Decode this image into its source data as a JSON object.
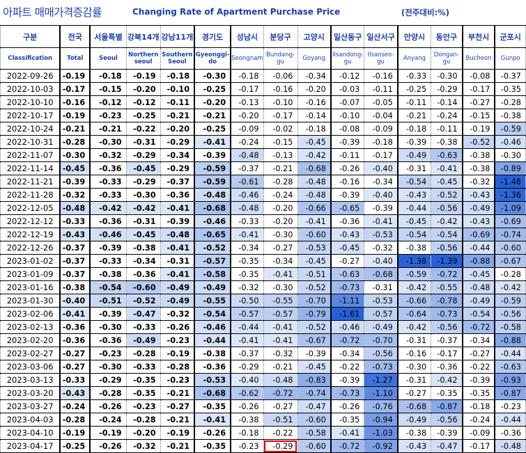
{
  "title": {
    "ko": "아파트 매매가격증감률",
    "en": "Changing Rate of Apartment Purchase Price",
    "unit": "(전주대비:%)"
  },
  "columns": [
    {
      "ko": "구분",
      "en": "Classification"
    },
    {
      "ko": "전국",
      "en": "Total"
    },
    {
      "ko": "서울특별",
      "en": "Seoul"
    },
    {
      "ko": "강북14개",
      "en": "Northern seoul"
    },
    {
      "ko": "강남11개",
      "en": "Southern Seoul"
    },
    {
      "ko": "경기도",
      "en": "Gyeonggi-do"
    },
    {
      "ko": "성남시",
      "en": "Seongnam"
    },
    {
      "ko": "분당구",
      "en": "Bundang-gu"
    },
    {
      "ko": "고양시",
      "en": "Goyang"
    },
    {
      "ko": "일산동구",
      "en": "Ilsandong-gu"
    },
    {
      "ko": "일산서구",
      "en": "Ilsanseo-gu"
    },
    {
      "ko": "안양시",
      "en": "Anyang"
    },
    {
      "ko": "동안구",
      "en": "Dongan-gu"
    },
    {
      "ko": "부천시",
      "en": "Bucheon"
    },
    {
      "ko": "군포시",
      "en": "Gunpo"
    }
  ],
  "rows": [
    {
      "date": "2022-09-26",
      "values": [
        "-0.19",
        "-0.18",
        "-0.19",
        "-0.18",
        "-0.30",
        "-0.18",
        "-0.06",
        "-0.34",
        "-0.12",
        "-0.16",
        "-0.33",
        "-0.30",
        "-0.08",
        "-0.37"
      ]
    },
    {
      "date": "2022-10-03",
      "values": [
        "-0.17",
        "-0.15",
        "-0.20",
        "-0.10",
        "-0.25",
        "-0.17",
        "-0.16",
        "-0.20",
        "-0.03",
        "-0.11",
        "-0.25",
        "-0.29",
        "-0.17",
        "-0.35"
      ]
    },
    {
      "date": "2022-10-10",
      "values": [
        "-0.16",
        "-0.12",
        "-0.12",
        "-0.11",
        "-0.20",
        "-0.13",
        "-0.10",
        "-0.16",
        "-0.07",
        "-0.05",
        "-0.11",
        "-0.14",
        "-0.27",
        "-0.28"
      ]
    },
    {
      "date": "2022-10-17",
      "values": [
        "-0.19",
        "-0.23",
        "-0.25",
        "-0.21",
        "-0.21",
        "-0.20",
        "-0.17",
        "-0.14",
        "-0.10",
        "-0.04",
        "-0.21",
        "-0.24",
        "-0.15",
        "-0.38"
      ]
    },
    {
      "date": "2022-10-24",
      "values": [
        "-0.21",
        "-0.21",
        "-0.22",
        "-0.20",
        "-0.25",
        "-0.09",
        "-0.02",
        "-0.18",
        "-0.08",
        "-0.09",
        "-0.18",
        "-0.11",
        "-0.19",
        "-0.59"
      ]
    },
    {
      "date": "2022-10-31",
      "values": [
        "-0.28",
        "-0.30",
        "-0.31",
        "-0.29",
        "-0.41",
        "-0.24",
        "-0.15",
        "-0.45",
        "-0.39",
        "-0.18",
        "-0.39",
        "-0.38",
        "-0.52",
        "-0.46"
      ]
    },
    {
      "date": "2022-11-07",
      "values": [
        "-0.30",
        "-0.32",
        "-0.29",
        "-0.34",
        "-0.39",
        "-0.48",
        "-0.13",
        "-0.42",
        "-0.11",
        "-0.17",
        "-0.49",
        "-0.63",
        "-0.38",
        "-0.30"
      ]
    },
    {
      "date": "2022-11-14",
      "values": [
        "-0.45",
        "-0.36",
        "-0.45",
        "-0.29",
        "-0.59",
        "-0.37",
        "-0.21",
        "-0.68",
        "-0.26",
        "-0.40",
        "-0.31",
        "-0.41",
        "-0.38",
        "-0.89"
      ]
    },
    {
      "date": "2022-11-21",
      "values": [
        "-0.39",
        "-0.33",
        "-0.29",
        "-0.37",
        "-0.59",
        "-0.61",
        "-0.28",
        "-0.48",
        "-0.16",
        "-0.34",
        "-0.54",
        "-0.45",
        "-0.32",
        "-1.48"
      ]
    },
    {
      "date": "2022-11-28",
      "values": [
        "-0.32",
        "-0.33",
        "-0.30",
        "-0.36",
        "-0.48",
        "-0.46",
        "-0.24",
        "-0.48",
        "-0.39",
        "-0.40",
        "-0.43",
        "-0.52",
        "-0.43",
        "-1.36"
      ]
    },
    {
      "date": "2022-12-05",
      "values": [
        "-0.48",
        "-0.42",
        "-0.42",
        "-0.41",
        "-0.68",
        "-0.48",
        "-0.20",
        "-0.66",
        "-0.65",
        "-0.39",
        "-0.44",
        "-0.56",
        "-0.49",
        "-1.09"
      ]
    },
    {
      "date": "2022-12-12",
      "values": [
        "-0.33",
        "-0.36",
        "-0.31",
        "-0.39",
        "-0.46",
        "-0.33",
        "-0.20",
        "-0.41",
        "-0.36",
        "-0.41",
        "-0.45",
        "-0.42",
        "-0.43",
        "-0.69"
      ]
    },
    {
      "date": "2022-12-19",
      "values": [
        "-0.43",
        "-0.46",
        "-0.45",
        "-0.48",
        "-0.65",
        "-0.41",
        "-0.30",
        "-0.60",
        "-0.43",
        "-0.53",
        "-0.54",
        "-0.54",
        "-0.69",
        "-0.74"
      ]
    },
    {
      "date": "2022-12-26",
      "values": [
        "-0.37",
        "-0.39",
        "-0.38",
        "-0.41",
        "-0.52",
        "-0.34",
        "-0.27",
        "-0.53",
        "-0.45",
        "-0.32",
        "-0.38",
        "-0.56",
        "-0.44",
        "-0.60"
      ]
    },
    {
      "date": "2023-01-02",
      "values": [
        "-0.37",
        "-0.33",
        "-0.34",
        "-0.31",
        "-0.57",
        "-0.35",
        "-0.34",
        "-0.45",
        "-0.27",
        "-0.40",
        "-1.38",
        "-1.39",
        "-0.88",
        "-0.67"
      ]
    },
    {
      "date": "2023-01-09",
      "values": [
        "-0.37",
        "-0.38",
        "-0.36",
        "-0.41",
        "-0.58",
        "-0.35",
        "-0.41",
        "-0.51",
        "-0.63",
        "-0.68",
        "-0.59",
        "-0.72",
        "-0.45",
        "-0.28"
      ]
    },
    {
      "date": "2023-01-16",
      "values": [
        "-0.38",
        "-0.54",
        "-0.60",
        "-0.49",
        "-0.49",
        "-0.32",
        "-0.30",
        "-0.52",
        "-0.73",
        "-0.31",
        "-0.42",
        "-0.55",
        "-0.48",
        "-0.42"
      ]
    },
    {
      "date": "2023-01-30",
      "values": [
        "-0.40",
        "-0.51",
        "-0.52",
        "-0.49",
        "-0.55",
        "-0.50",
        "-0.55",
        "-0.70",
        "-1.11",
        "-0.53",
        "-0.66",
        "-0.78",
        "-0.49",
        "-0.59"
      ]
    },
    {
      "date": "2023-02-06",
      "values": [
        "-0.41",
        "-0.39",
        "-0.47",
        "-0.32",
        "-0.54",
        "-0.57",
        "-0.57",
        "-0.79",
        "-1.61",
        "-0.57",
        "-0.64",
        "-0.73",
        "-0.54",
        "-0.56"
      ]
    },
    {
      "date": "2023-02-13",
      "values": [
        "-0.36",
        "-0.30",
        "-0.33",
        "-0.26",
        "-0.46",
        "-0.44",
        "-0.41",
        "-0.52",
        "-0.46",
        "-0.49",
        "-0.42",
        "-0.56",
        "-0.72",
        "-0.58"
      ]
    },
    {
      "date": "2023-02-20",
      "values": [
        "-0.36",
        "-0.36",
        "-0.49",
        "-0.23",
        "-0.44",
        "-0.41",
        "-0.41",
        "-0.67",
        "-0.72",
        "-0.70",
        "-0.31",
        "-0.37",
        "-0.34",
        "-0.88"
      ]
    },
    {
      "date": "2023-02-27",
      "values": [
        "-0.27",
        "-0.23",
        "-0.28",
        "-0.19",
        "-0.38",
        "-0.37",
        "-0.32",
        "-0.39",
        "-0.34",
        "-0.56",
        "-0.16",
        "-0.17",
        "-0.27",
        "-0.44"
      ]
    },
    {
      "date": "2023-03-06",
      "values": [
        "-0.27",
        "-0.30",
        "-0.33",
        "-0.28",
        "-0.36",
        "-0.29",
        "-0.21",
        "-0.45",
        "-0.22",
        "-0.73",
        "-0.30",
        "-0.36",
        "-0.22",
        "-0.63"
      ]
    },
    {
      "date": "2023-03-13",
      "values": [
        "-0.33",
        "-0.29",
        "-0.35",
        "-0.23",
        "-0.53",
        "-0.40",
        "-0.48",
        "-0.83",
        "-0.39",
        "-1.27",
        "-0.31",
        "-0.42",
        "-0.39",
        "-0.93"
      ]
    },
    {
      "date": "2023-03-20",
      "values": [
        "-0.43",
        "-0.28",
        "-0.35",
        "-0.21",
        "-0.68",
        "-0.62",
        "-0.72",
        "-0.74",
        "-0.73",
        "-1.10",
        "-0.27",
        "-0.35",
        "-0.35",
        "-0.87"
      ]
    },
    {
      "date": "2023-03-27",
      "values": [
        "-0.24",
        "-0.26",
        "-0.23",
        "-0.27",
        "-0.35",
        "-0.26",
        "-0.27",
        "-0.47",
        "-0.26",
        "-0.76",
        "-0.68",
        "-0.87",
        "-0.18",
        "-0.23"
      ]
    },
    {
      "date": "2023-04-03",
      "values": [
        "-0.28",
        "-0.24",
        "-0.28",
        "-0.21",
        "-0.41",
        "-0.38",
        "-0.51",
        "-0.60",
        "-0.35",
        "-0.94",
        "-0.49",
        "-0.56",
        "-0.24",
        "-0.44"
      ]
    },
    {
      "date": "2023-04-10",
      "values": [
        "-0.19",
        "-0.19",
        "-0.20",
        "-0.19",
        "-0.26",
        "-0.18",
        "-0.22",
        "-0.58",
        "-0.41",
        "-1.03",
        "-0.38",
        "-0.39",
        "-0.09",
        "-0.36"
      ]
    },
    {
      "date": "2023-04-17",
      "values": [
        "-0.25",
        "-0.26",
        "-0.32",
        "-0.21",
        "-0.35",
        "-0.23",
        "-0.29",
        "-0.60",
        "-0.72",
        "-0.92",
        "-0.43",
        "-0.47",
        "-0.17",
        "-0.48"
      ]
    }
  ],
  "highlight": {
    "row": 28,
    "col": 7,
    "color": "#e00000"
  },
  "heat_colors": {
    "light": "#dce6f7",
    "mid": "#8fb0e6",
    "strong": "#2f69d8"
  }
}
